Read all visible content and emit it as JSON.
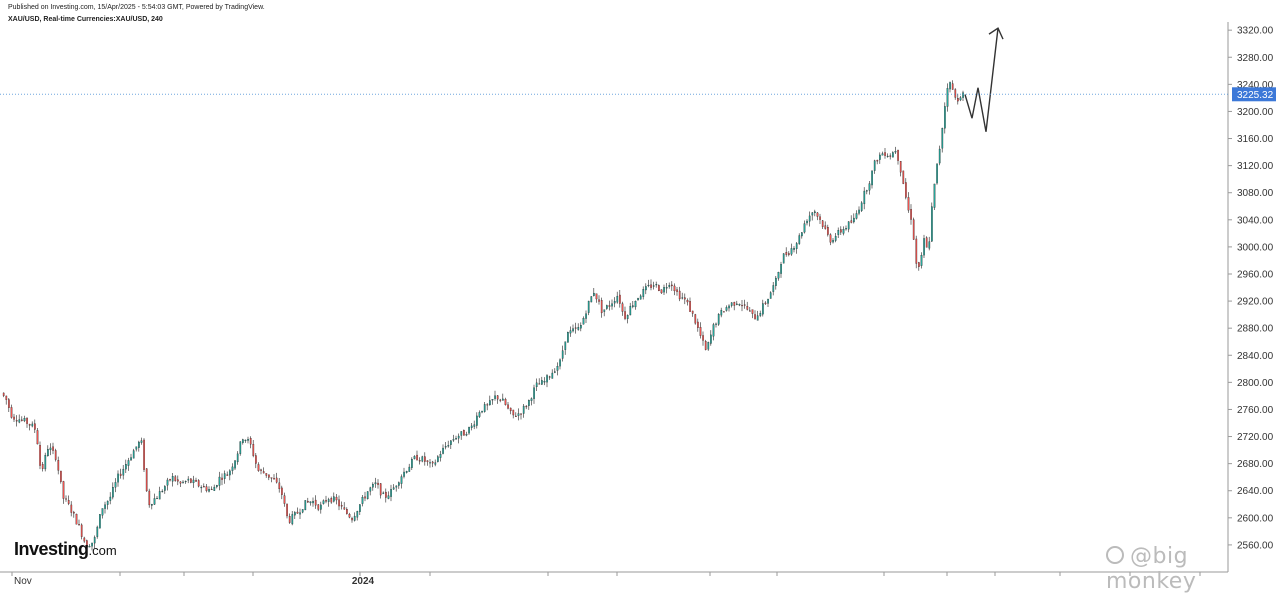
{
  "header": {
    "published": "Published on Investing.com, 15/Apr/2025 - 5:54:03 GMT, Powered by TradingView.",
    "symbol": "XAU/USD, Real-time Currencies:XAU/USD, 240"
  },
  "logo": {
    "text": "Investing",
    "suffix": ".com"
  },
  "watermark": {
    "text": "@big monkey"
  },
  "colors": {
    "up": "#26a69a",
    "down": "#ef5350",
    "wick": "#222222",
    "price_line": "#4a8fd6",
    "price_badge": "#3c78d8",
    "grid": "#e6e6e6",
    "axis": "#9a9a9a"
  },
  "chart_data": {
    "type": "candlestick",
    "instrument": "XAU/USD",
    "interval": "240",
    "ylim": [
      2520,
      3335
    ],
    "y_ticks": [
      2560,
      2600,
      2640,
      2680,
      2720,
      2760,
      2800,
      2840,
      2880,
      2920,
      2960,
      3000,
      3040,
      3080,
      3120,
      3160,
      3200,
      3240,
      3280,
      3320
    ],
    "y_tick_labels": [
      "2560.00",
      "2600.00",
      "2640.00",
      "2680.00",
      "2720.00",
      "2760.00",
      "2800.00",
      "2840.00",
      "2880.00",
      "2920.00",
      "2960.00",
      "3000.00",
      "3040.00",
      "3080.00",
      "3120.00",
      "3160.00",
      "3200.00",
      "3240.00",
      "3280.00",
      "3320.00"
    ],
    "x_labels": [
      "Nov",
      "2024"
    ],
    "current_price": 3225.32,
    "current_price_label": "3225.32",
    "price_path": [
      [
        0,
        2790
      ],
      [
        8,
        2775
      ],
      [
        14,
        2750
      ],
      [
        22,
        2745
      ],
      [
        30,
        2740
      ],
      [
        38,
        2730
      ],
      [
        43,
        2665
      ],
      [
        50,
        2705
      ],
      [
        58,
        2690
      ],
      [
        65,
        2630
      ],
      [
        72,
        2615
      ],
      [
        80,
        2590
      ],
      [
        88,
        2560
      ],
      [
        96,
        2565
      ],
      [
        104,
        2615
      ],
      [
        112,
        2630
      ],
      [
        120,
        2660
      ],
      [
        128,
        2680
      ],
      [
        136,
        2700
      ],
      [
        143,
        2715
      ],
      [
        150,
        2620
      ],
      [
        158,
        2630
      ],
      [
        166,
        2645
      ],
      [
        174,
        2660
      ],
      [
        182,
        2650
      ],
      [
        190,
        2655
      ],
      [
        198,
        2650
      ],
      [
        206,
        2645
      ],
      [
        214,
        2640
      ],
      [
        222,
        2660
      ],
      [
        230,
        2665
      ],
      [
        238,
        2690
      ],
      [
        245,
        2720
      ],
      [
        252,
        2710
      ],
      [
        260,
        2670
      ],
      [
        268,
        2665
      ],
      [
        276,
        2655
      ],
      [
        283,
        2640
      ],
      [
        290,
        2595
      ],
      [
        298,
        2605
      ],
      [
        306,
        2620
      ],
      [
        314,
        2625
      ],
      [
        322,
        2615
      ],
      [
        330,
        2630
      ],
      [
        338,
        2625
      ],
      [
        346,
        2610
      ],
      [
        354,
        2600
      ],
      [
        362,
        2620
      ],
      [
        370,
        2640
      ],
      [
        378,
        2650
      ],
      [
        386,
        2630
      ],
      [
        394,
        2640
      ],
      [
        402,
        2660
      ],
      [
        410,
        2675
      ],
      [
        418,
        2690
      ],
      [
        426,
        2685
      ],
      [
        434,
        2675
      ],
      [
        442,
        2695
      ],
      [
        450,
        2710
      ],
      [
        458,
        2720
      ],
      [
        466,
        2725
      ],
      [
        474,
        2735
      ],
      [
        482,
        2760
      ],
      [
        490,
        2765
      ],
      [
        498,
        2780
      ],
      [
        506,
        2770
      ],
      [
        514,
        2750
      ],
      [
        522,
        2755
      ],
      [
        530,
        2770
      ],
      [
        538,
        2795
      ],
      [
        546,
        2800
      ],
      [
        554,
        2815
      ],
      [
        562,
        2830
      ],
      [
        568,
        2870
      ],
      [
        574,
        2875
      ],
      [
        582,
        2880
      ],
      [
        590,
        2915
      ],
      [
        596,
        2935
      ],
      [
        604,
        2905
      ],
      [
        612,
        2915
      ],
      [
        620,
        2930
      ],
      [
        626,
        2895
      ],
      [
        634,
        2915
      ],
      [
        642,
        2930
      ],
      [
        650,
        2940
      ],
      [
        656,
        2945
      ],
      [
        664,
        2935
      ],
      [
        672,
        2950
      ],
      [
        680,
        2930
      ],
      [
        688,
        2920
      ],
      [
        696,
        2895
      ],
      [
        702,
        2870
      ],
      [
        708,
        2845
      ],
      [
        716,
        2885
      ],
      [
        724,
        2905
      ],
      [
        732,
        2915
      ],
      [
        740,
        2920
      ],
      [
        748,
        2910
      ],
      [
        756,
        2895
      ],
      [
        762,
        2905
      ],
      [
        770,
        2925
      ],
      [
        778,
        2950
      ],
      [
        784,
        2985
      ],
      [
        792,
        2995
      ],
      [
        800,
        3010
      ],
      [
        808,
        3040
      ],
      [
        816,
        3055
      ],
      [
        824,
        3035
      ],
      [
        832,
        3010
      ],
      [
        840,
        3020
      ],
      [
        848,
        3030
      ],
      [
        856,
        3040
      ],
      [
        864,
        3070
      ],
      [
        872,
        3100
      ],
      [
        878,
        3130
      ],
      [
        886,
        3140
      ],
      [
        892,
        3135
      ],
      [
        898,
        3145
      ],
      [
        904,
        3105
      ],
      [
        910,
        3055
      ],
      [
        914,
        3040
      ],
      [
        918,
        2975
      ],
      [
        922,
        2970
      ],
      [
        926,
        3010
      ],
      [
        930,
        2990
      ],
      [
        934,
        3060
      ],
      [
        938,
        3110
      ],
      [
        942,
        3150
      ],
      [
        946,
        3200
      ],
      [
        950,
        3245
      ],
      [
        954,
        3235
      ],
      [
        958,
        3215
      ],
      [
        962,
        3225
      ],
      [
        965,
        3225
      ]
    ],
    "projection": [
      [
        965,
        3225
      ],
      [
        972,
        3190
      ],
      [
        978,
        3235
      ],
      [
        986,
        3170
      ],
      [
        998,
        3323
      ]
    ]
  }
}
